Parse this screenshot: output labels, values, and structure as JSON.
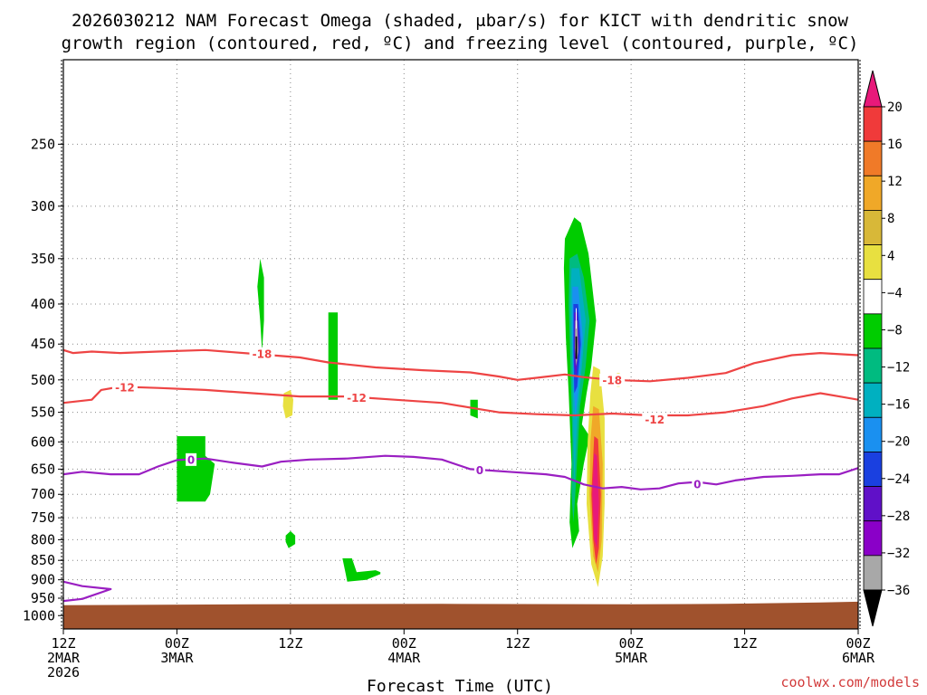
{
  "chart_data": {
    "type": "heatmap",
    "title_line1": "2026030212 NAM Forecast Omega (shaded, μbar/s) for KICT with dendritic snow",
    "title_line2": "growth region (contoured, red, ºC) and freezing level (contoured, purple, ºC)",
    "xlabel": "Forecast Time (UTC)",
    "ylabel": "",
    "credit": "coolwx.com/models",
    "x_range_hours": [
      0,
      84
    ],
    "x_ticks": [
      {
        "hour": 0,
        "lines": [
          "12Z",
          "2MAR",
          "2026"
        ]
      },
      {
        "hour": 12,
        "lines": [
          "00Z",
          "3MAR"
        ]
      },
      {
        "hour": 24,
        "lines": [
          "12Z"
        ]
      },
      {
        "hour": 36,
        "lines": [
          "00Z",
          "4MAR"
        ]
      },
      {
        "hour": 48,
        "lines": [
          "12Z"
        ]
      },
      {
        "hour": 60,
        "lines": [
          "00Z",
          "5MAR"
        ]
      },
      {
        "hour": 72,
        "lines": [
          "12Z"
        ]
      },
      {
        "hour": 84,
        "lines": [
          "00Z",
          "6MAR"
        ]
      }
    ],
    "y_axis": {
      "scale": "log-pressure",
      "range_hpa": [
        1040,
        195
      ],
      "tick_labels": [
        "250",
        "300",
        "350",
        "400",
        "450",
        "500",
        "550",
        "600",
        "650",
        "700",
        "750",
        "800",
        "850",
        "900",
        "950",
        "1000"
      ]
    },
    "colorbar": {
      "label_values": [
        "20",
        "16",
        "12",
        "8",
        "4",
        "−4",
        "−8",
        "−12",
        "−16",
        "−20",
        "−24",
        "−28",
        "−32",
        "−36"
      ],
      "colors": [
        "#e8197a",
        "#f03a3a",
        "#f07a28",
        "#f0a828",
        "#d8b838",
        "#e8e040",
        "#ffffff",
        "#00cc00",
        "#00bb80",
        "#00b0c0",
        "#1a90f0",
        "#1a40e0",
        "#6010c8",
        "#8a00c8",
        "#a8a8a8",
        "#000000"
      ]
    },
    "ground_color": "#a0522d",
    "dendritic_colour": "#ee4444",
    "freezing_colour": "#9a1fc2",
    "contours": [
      {
        "name": "dendritic -18C",
        "level_label": "-18",
        "colour": "#ee4444",
        "points": [
          [
            0,
            458
          ],
          [
            1,
            462
          ],
          [
            3,
            460
          ],
          [
            6,
            462
          ],
          [
            10,
            460
          ],
          [
            15,
            458
          ],
          [
            20,
            463
          ],
          [
            25,
            468
          ],
          [
            28,
            475
          ],
          [
            33,
            482
          ],
          [
            38,
            486
          ],
          [
            43,
            489
          ],
          [
            46,
            495
          ],
          [
            48,
            500
          ],
          [
            50,
            497
          ],
          [
            53,
            492
          ],
          [
            55,
            496
          ],
          [
            58,
            500
          ],
          [
            62,
            502
          ],
          [
            66,
            497
          ],
          [
            70,
            490
          ],
          [
            73,
            476
          ],
          [
            77,
            465
          ],
          [
            80,
            462
          ],
          [
            84,
            465
          ]
        ],
        "labels": [
          {
            "x": 21,
            "y": 463,
            "text": "-18"
          },
          {
            "x": 58,
            "y": 500,
            "text": "-18"
          }
        ]
      },
      {
        "name": "dendritic -12C",
        "level_label": "-12",
        "colour": "#ee4444",
        "points": [
          [
            0,
            535
          ],
          [
            3,
            530
          ],
          [
            4,
            515
          ],
          [
            6,
            510
          ],
          [
            10,
            512
          ],
          [
            15,
            515
          ],
          [
            20,
            520
          ],
          [
            25,
            525
          ],
          [
            30,
            525
          ],
          [
            35,
            530
          ],
          [
            40,
            535
          ],
          [
            44,
            545
          ],
          [
            46,
            550
          ],
          [
            50,
            553
          ],
          [
            54,
            555
          ],
          [
            58,
            552
          ],
          [
            62,
            555
          ],
          [
            66,
            555
          ],
          [
            70,
            550
          ],
          [
            74,
            540
          ],
          [
            77,
            528
          ],
          [
            80,
            520
          ],
          [
            82,
            525
          ],
          [
            84,
            530
          ]
        ],
        "labels": [
          {
            "x": 6.5,
            "y": 511,
            "text": "-12"
          },
          {
            "x": 31,
            "y": 527,
            "text": "-12"
          },
          {
            "x": 62.5,
            "y": 562,
            "text": "-12"
          }
        ]
      },
      {
        "name": "freezing level 0C main",
        "level_label": "0",
        "colour": "#9a1fc2",
        "points": [
          [
            0,
            660
          ],
          [
            2,
            655
          ],
          [
            5,
            660
          ],
          [
            8,
            660
          ],
          [
            10,
            645
          ],
          [
            12,
            633
          ],
          [
            15,
            630
          ],
          [
            18,
            638
          ],
          [
            21,
            645
          ],
          [
            23,
            636
          ],
          [
            26,
            632
          ],
          [
            30,
            630
          ],
          [
            34,
            625
          ],
          [
            37,
            627
          ],
          [
            40,
            632
          ],
          [
            43,
            650
          ],
          [
            47,
            655
          ],
          [
            51,
            660
          ],
          [
            53,
            665
          ],
          [
            55,
            680
          ],
          [
            57,
            688
          ],
          [
            59,
            685
          ],
          [
            61,
            690
          ],
          [
            63,
            688
          ],
          [
            65,
            678
          ],
          [
            67,
            675
          ],
          [
            69,
            680
          ],
          [
            71,
            672
          ],
          [
            74,
            665
          ],
          [
            77,
            663
          ],
          [
            80,
            660
          ],
          [
            82,
            660
          ],
          [
            84,
            648
          ]
        ],
        "labels": [
          {
            "x": 13.5,
            "y": 632,
            "text": "0"
          },
          {
            "x": 44,
            "y": 652,
            "text": "0"
          },
          {
            "x": 67,
            "y": 679,
            "text": "0"
          }
        ]
      },
      {
        "name": "freezing level 0C low branch",
        "level_label": "0",
        "colour": "#9a1fc2",
        "points": [
          [
            0,
            905
          ],
          [
            2,
            917
          ],
          [
            5,
            925
          ],
          [
            2,
            952
          ],
          [
            0,
            958
          ]
        ],
        "labels": []
      }
    ],
    "omega_features": [
      {
        "name": "green cell upper",
        "color": "#00cc00",
        "points": [
          [
            20.8,
            350
          ],
          [
            21.2,
            370
          ],
          [
            21.2,
            420
          ],
          [
            21,
            460
          ],
          [
            20.8,
            420
          ],
          [
            20.5,
            380
          ]
        ]
      },
      {
        "name": "green column",
        "color": "#00cc00",
        "points": [
          [
            28,
            410
          ],
          [
            29,
            410
          ],
          [
            29,
            530
          ],
          [
            28,
            530
          ]
        ]
      },
      {
        "name": "green cell mid",
        "color": "#00cc00",
        "points": [
          [
            43,
            530
          ],
          [
            43.8,
            530
          ],
          [
            43.8,
            560
          ],
          [
            43,
            555
          ]
        ]
      },
      {
        "name": "green block 3MAR",
        "color": "#00cc00",
        "points": [
          [
            12,
            590
          ],
          [
            15,
            590
          ],
          [
            15,
            625
          ],
          [
            16,
            640
          ],
          [
            15.5,
            700
          ],
          [
            15,
            715
          ],
          [
            12,
            715
          ]
        ]
      },
      {
        "name": "green cell low",
        "color": "#00cc00",
        "points": [
          [
            23.5,
            790
          ],
          [
            24,
            780
          ],
          [
            24.5,
            790
          ],
          [
            24.5,
            810
          ],
          [
            23.8,
            820
          ],
          [
            23.5,
            805
          ]
        ]
      },
      {
        "name": "green cell near 900",
        "color": "#00cc00",
        "points": [
          [
            29.5,
            845
          ],
          [
            30.5,
            845
          ],
          [
            31,
            880
          ],
          [
            33,
            875
          ],
          [
            33.5,
            880
          ],
          [
            33.5,
            885
          ],
          [
            32,
            900
          ],
          [
            30,
            905
          ],
          [
            29.8,
            880
          ]
        ]
      },
      {
        "name": "yellow cell",
        "color": "#e8e040",
        "points": [
          [
            23.3,
            520
          ],
          [
            24,
            515
          ],
          [
            24.3,
            530
          ],
          [
            24.2,
            555
          ],
          [
            23.5,
            560
          ],
          [
            23.2,
            540
          ]
        ]
      },
      {
        "name": "green plume",
        "color": "#00cc00",
        "points": [
          [
            53,
            330
          ],
          [
            54,
            310
          ],
          [
            54.7,
            315
          ],
          [
            55.5,
            345
          ],
          [
            56.3,
            420
          ],
          [
            55.8,
            480
          ],
          [
            55.3,
            520
          ],
          [
            54.8,
            570
          ],
          [
            55.6,
            590
          ],
          [
            55,
            640
          ],
          [
            54.3,
            720
          ],
          [
            54.5,
            780
          ],
          [
            53.8,
            820
          ],
          [
            53.5,
            760
          ],
          [
            53.7,
            640
          ],
          [
            53.4,
            520
          ],
          [
            53.1,
            440
          ],
          [
            52.9,
            360
          ]
        ]
      },
      {
        "name": "teal plume",
        "color": "#00bb80",
        "points": [
          [
            53.5,
            350
          ],
          [
            54.3,
            345
          ],
          [
            55,
            370
          ],
          [
            55.6,
            420
          ],
          [
            55.2,
            480
          ],
          [
            54.6,
            540
          ],
          [
            54.4,
            600
          ],
          [
            54.1,
            700
          ],
          [
            53.9,
            760
          ],
          [
            53.7,
            700
          ],
          [
            53.8,
            600
          ],
          [
            53.6,
            480
          ],
          [
            53.4,
            400
          ]
        ]
      },
      {
        "name": "cyan plume",
        "color": "#00b0c0",
        "points": [
          [
            53.7,
            360
          ],
          [
            54.5,
            360
          ],
          [
            55.2,
            420
          ],
          [
            54.8,
            480
          ],
          [
            54.4,
            540
          ],
          [
            54.2,
            600
          ],
          [
            54,
            680
          ],
          [
            53.9,
            600
          ],
          [
            53.8,
            480
          ],
          [
            53.6,
            400
          ]
        ]
      },
      {
        "name": "light blue plume",
        "color": "#1a90f0",
        "points": [
          [
            53.8,
            380
          ],
          [
            54.4,
            380
          ],
          [
            54.9,
            440
          ],
          [
            54.5,
            500
          ],
          [
            54.1,
            560
          ],
          [
            53.9,
            500
          ],
          [
            53.8,
            440
          ]
        ]
      },
      {
        "name": "blue core",
        "color": "#1a40e0",
        "points": [
          [
            53.9,
            400
          ],
          [
            54.4,
            400
          ],
          [
            54.7,
            450
          ],
          [
            54.3,
            510
          ],
          [
            54,
            520
          ],
          [
            53.9,
            460
          ]
        ]
      },
      {
        "name": "purple core",
        "color": "#6010c8",
        "points": [
          [
            54,
            410
          ],
          [
            54.3,
            410
          ],
          [
            54.5,
            450
          ],
          [
            54.2,
            495
          ],
          [
            54,
            480
          ]
        ]
      },
      {
        "name": "grey ring",
        "color": "#a8a8a8",
        "points": [
          [
            54.1,
            420
          ],
          [
            54.3,
            420
          ],
          [
            54.4,
            460
          ],
          [
            54.2,
            480
          ],
          [
            54.05,
            455
          ]
        ]
      },
      {
        "name": "white slot",
        "color": "#ffffff",
        "points": [
          [
            54.15,
            405
          ],
          [
            54.25,
            405
          ],
          [
            54.25,
            430
          ],
          [
            54.15,
            430
          ]
        ]
      },
      {
        "name": "black core",
        "color": "#000000",
        "points": [
          [
            54.12,
            440
          ],
          [
            54.28,
            440
          ],
          [
            54.28,
            470
          ],
          [
            54.12,
            470
          ]
        ]
      },
      {
        "name": "yellow plume",
        "color": "#e8e040",
        "points": [
          [
            56,
            480
          ],
          [
            56.7,
            485
          ],
          [
            57.2,
            560
          ],
          [
            57.2,
            720
          ],
          [
            57,
            840
          ],
          [
            56.5,
            920
          ],
          [
            55.8,
            860
          ],
          [
            55.3,
            720
          ],
          [
            55.4,
            600
          ],
          [
            55.7,
            520
          ]
        ]
      },
      {
        "name": "orange plume",
        "color": "#f0a828",
        "points": [
          [
            56,
            540
          ],
          [
            56.6,
            545
          ],
          [
            57,
            640
          ],
          [
            56.9,
            800
          ],
          [
            56.5,
            880
          ],
          [
            56,
            840
          ],
          [
            55.6,
            700
          ],
          [
            55.7,
            600
          ]
        ]
      },
      {
        "name": "red plume",
        "color": "#f03a3a",
        "points": [
          [
            56.1,
            590
          ],
          [
            56.5,
            595
          ],
          [
            56.8,
            700
          ],
          [
            56.6,
            820
          ],
          [
            56.3,
            860
          ],
          [
            56,
            800
          ],
          [
            55.8,
            700
          ]
        ]
      },
      {
        "name": "magenta core",
        "color": "#e8197a",
        "points": [
          [
            56.1,
            620
          ],
          [
            56.4,
            625
          ],
          [
            56.6,
            720
          ],
          [
            56.4,
            820
          ],
          [
            56.1,
            800
          ],
          [
            55.9,
            700
          ]
        ]
      },
      {
        "name": "yellow dot 5MAR",
        "color": "#e8e040",
        "points": [
          [
            58.5,
            490
          ],
          [
            58.8,
            490
          ],
          [
            58.8,
            510
          ],
          [
            58.5,
            510
          ]
        ]
      }
    ]
  }
}
